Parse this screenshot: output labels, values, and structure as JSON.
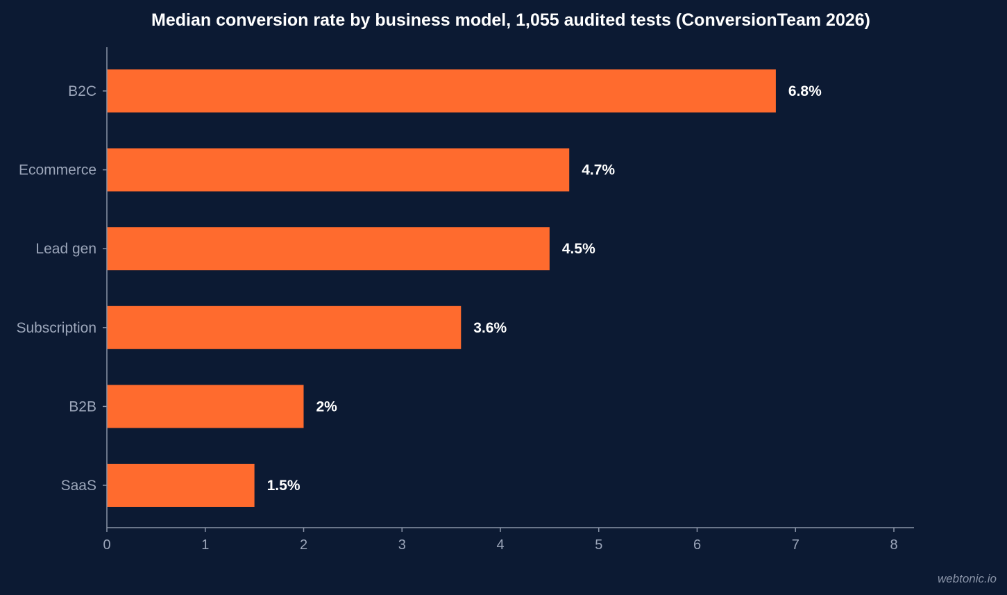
{
  "chart_data": {
    "type": "bar",
    "orientation": "horizontal",
    "title": "Median conversion rate by business model, 1,055 audited tests (ConversionTeam 2026)",
    "xlabel": "",
    "ylabel": "",
    "categories": [
      "B2C",
      "Ecommerce",
      "Lead gen",
      "Subscription",
      "B2B",
      "SaaS"
    ],
    "values": [
      6.8,
      4.7,
      4.5,
      3.6,
      2,
      1.5
    ],
    "value_labels": [
      "6.8%",
      "4.7%",
      "4.5%",
      "3.6%",
      "2%",
      "1.5%"
    ],
    "xlim": [
      0,
      8
    ],
    "x_ticks": [
      0,
      1,
      2,
      3,
      4,
      5,
      6,
      7,
      8
    ],
    "grid": false,
    "legend": "none",
    "colors": {
      "bar": "#ff6b2e",
      "background": "#0c1a33",
      "axis": "#8a94a8",
      "tick_text": "#9ca6ba",
      "title_text": "#ffffff",
      "value_text": "#ffffff"
    }
  },
  "watermark": "webtonic.io"
}
